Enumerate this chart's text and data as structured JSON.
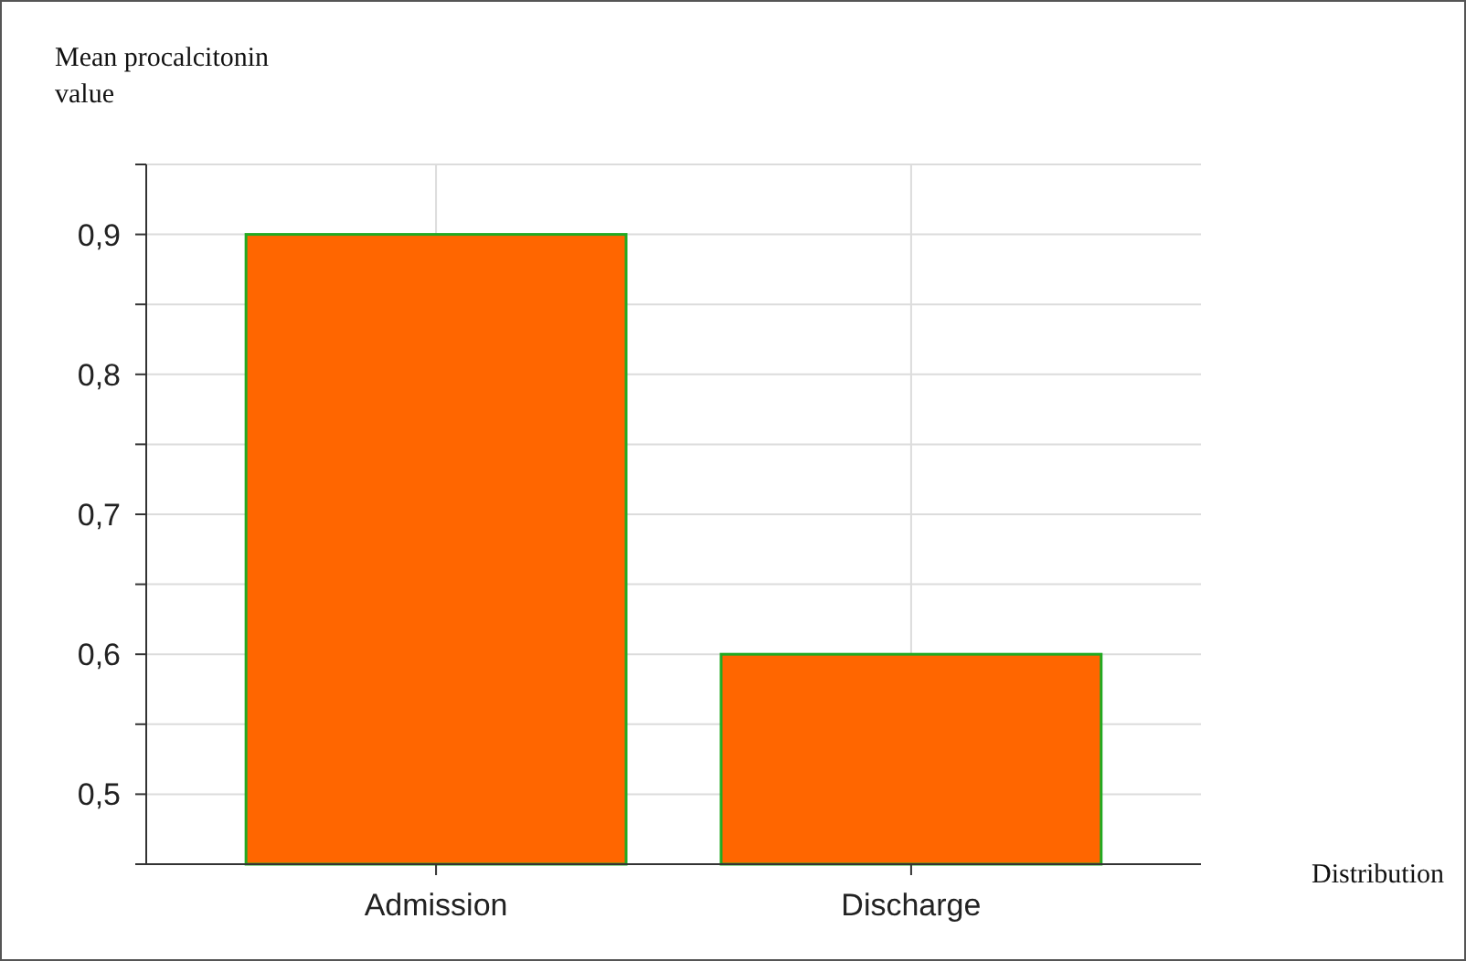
{
  "chart_data": {
    "type": "bar",
    "ylabel": "Mean procalcitonin value",
    "xlabel": "Distribution",
    "categories": [
      "Admission",
      "Discharge"
    ],
    "values": [
      0.9,
      0.6
    ],
    "color": "#ff6600",
    "ylim": [
      0.45,
      0.95
    ],
    "yticks": [
      {
        "value": 0.45,
        "label": null
      },
      {
        "value": 0.5,
        "label": "0,5"
      },
      {
        "value": 0.55,
        "label": null
      },
      {
        "value": 0.6,
        "label": "0,6"
      },
      {
        "value": 0.65,
        "label": null
      },
      {
        "value": 0.7,
        "label": "0,7"
      },
      {
        "value": 0.75,
        "label": null
      },
      {
        "value": 0.8,
        "label": "0,8"
      },
      {
        "value": 0.85,
        "label": null
      },
      {
        "value": 0.9,
        "label": "0,9"
      },
      {
        "value": 0.95,
        "label": null
      }
    ],
    "grid": true
  }
}
